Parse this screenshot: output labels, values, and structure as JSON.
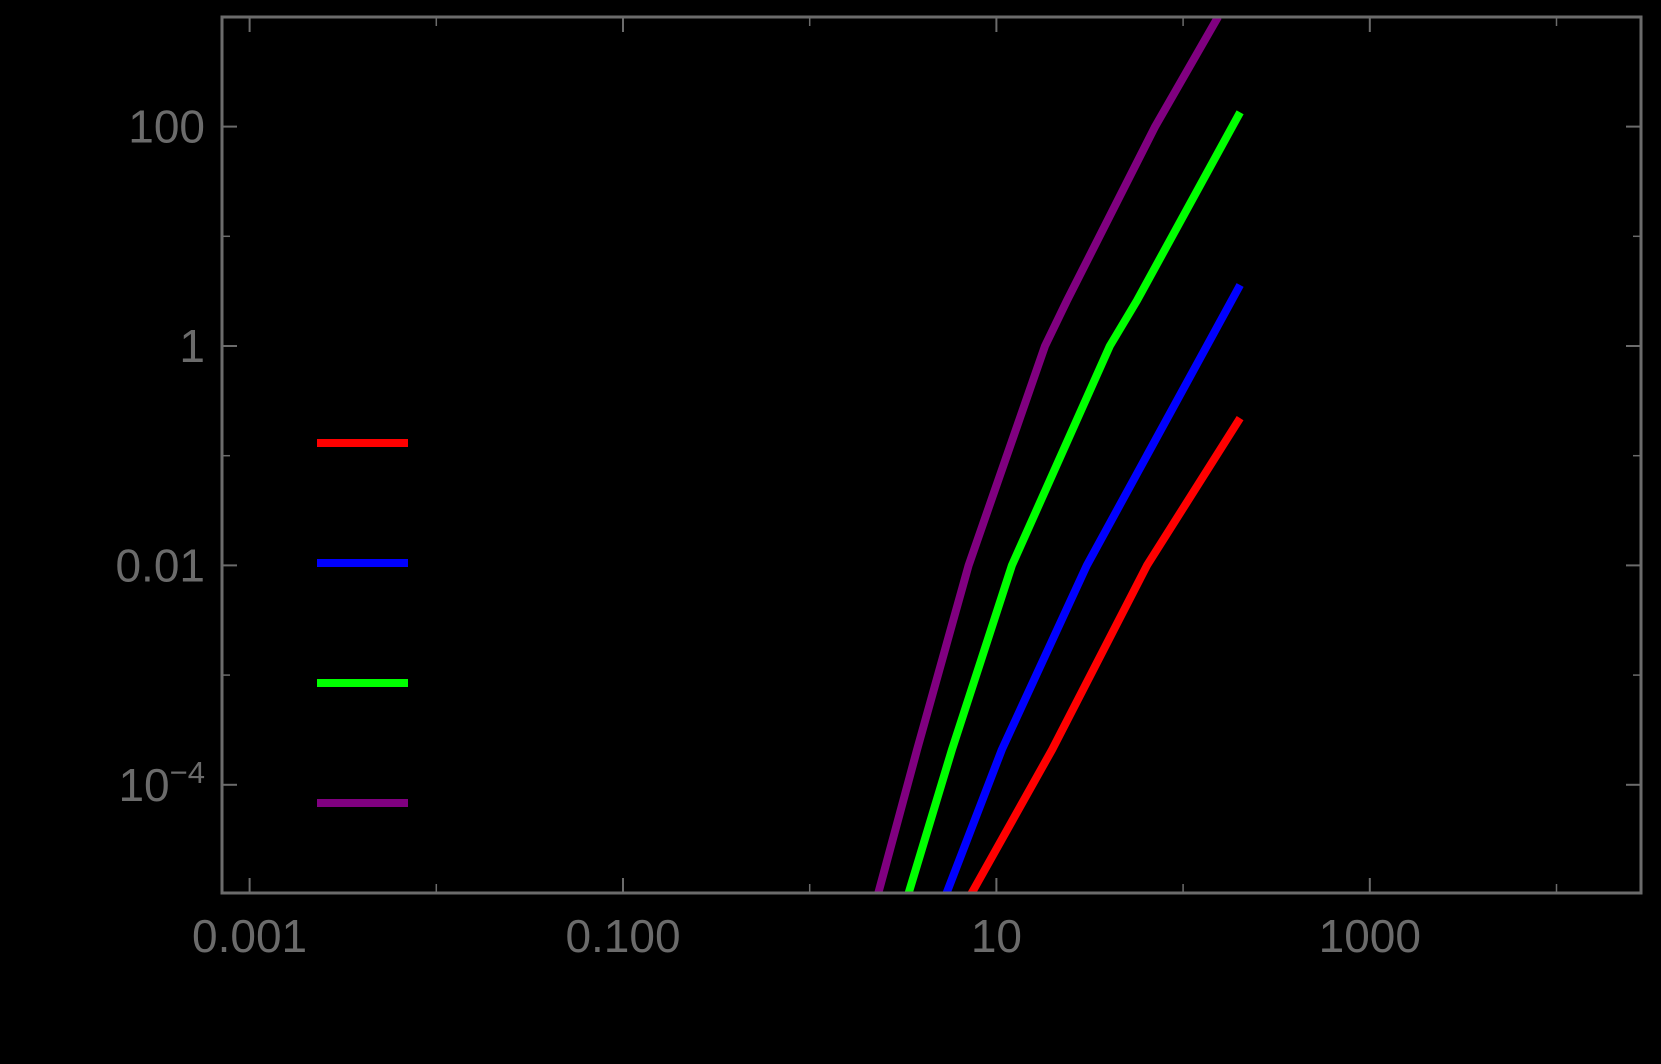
{
  "chart_data": {
    "type": "line",
    "title": "",
    "xlabel": "",
    "ylabel": "",
    "xscale": "log",
    "yscale": "log",
    "xlim": [
      0.000711,
      28200
    ],
    "ylim": [
      1e-05,
      1000
    ],
    "grid": false,
    "background": "#000000",
    "axis_color": "#6b6b6b",
    "x_ticks": [
      {
        "value": 0.001,
        "label": "0.001",
        "major": true
      },
      {
        "value": 0.01,
        "label": "",
        "major": false
      },
      {
        "value": 0.1,
        "label": "0.100",
        "major": true
      },
      {
        "value": 1,
        "label": "",
        "major": false
      },
      {
        "value": 10,
        "label": "10",
        "major": true
      },
      {
        "value": 100,
        "label": "",
        "major": false
      },
      {
        "value": 1000,
        "label": "1000",
        "major": true
      },
      {
        "value": 10000,
        "label": "",
        "major": false
      }
    ],
    "y_ticks": [
      {
        "value": 100,
        "label": "100",
        "major": true
      },
      {
        "value": 10,
        "label": "",
        "major": false
      },
      {
        "value": 1,
        "label": "1",
        "major": true
      },
      {
        "value": 0.1,
        "label": "",
        "major": false
      },
      {
        "value": 0.01,
        "label": "0.01",
        "major": true
      },
      {
        "value": 0.001,
        "label": "",
        "major": false
      },
      {
        "value": 0.0001,
        "label": "10",
        "label_sup": "−4",
        "major": true
      }
    ],
    "legend": {
      "position": "inside-left",
      "entries": [
        {
          "label": "",
          "color": "#ff0000"
        },
        {
          "label": "",
          "color": "#0000ff"
        },
        {
          "label": "",
          "color": "#00ff00"
        },
        {
          "label": "",
          "color": "#800080"
        }
      ]
    },
    "series": [
      {
        "name": "red",
        "color": "#ff0000",
        "x": [
          7.3,
          19.9,
          64.1,
          202
        ],
        "y": [
          1e-05,
          0.00021,
          0.01,
          0.22
        ]
      },
      {
        "name": "blue",
        "color": "#0000ff",
        "x": [
          5.37,
          10.7,
          30.5,
          134,
          202
        ],
        "y": [
          1e-05,
          0.00021,
          0.01,
          1.0,
          3.6
        ]
      },
      {
        "name": "green",
        "color": "#00ff00",
        "x": [
          3.37,
          5.78,
          12.1,
          40.5,
          56.6,
          202
        ],
        "y": [
          1e-05,
          0.00021,
          0.01,
          1.0,
          2.6,
          135
        ]
      },
      {
        "name": "purple",
        "color": "#800080",
        "x": [
          2.32,
          3.76,
          7.1,
          18.2,
          23.9,
          70.8,
          154
        ],
        "y": [
          1e-05,
          0.00021,
          0.01,
          1.0,
          2.6,
          100,
          1000
        ]
      }
    ]
  }
}
